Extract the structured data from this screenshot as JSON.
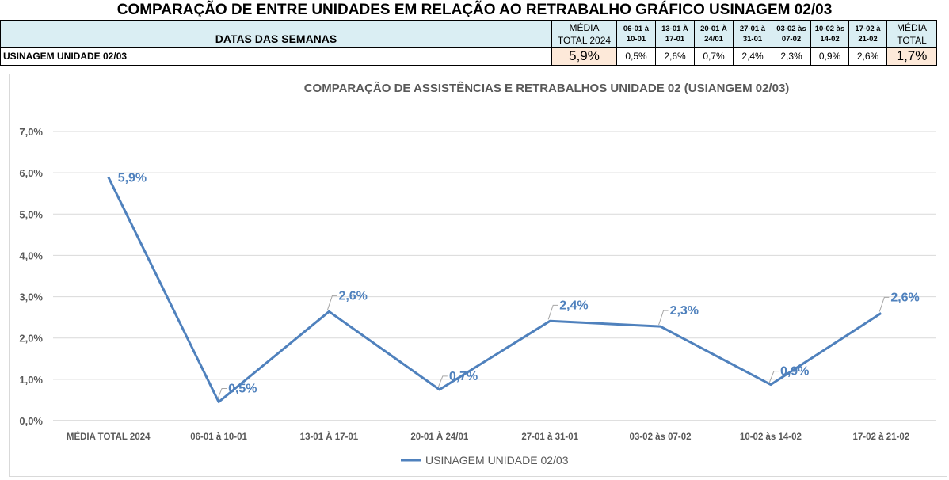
{
  "header": {
    "title": "COMPARAÇÃO DE ENTRE UNIDADES EM RELAÇÃO AO RETRABALHO GRÁFICO USINAGEM 02/03"
  },
  "table": {
    "label_header": "DATAS DAS SEMANAS",
    "columns": [
      {
        "line1": "MÉDIA",
        "line2": "TOTAL 2024"
      },
      {
        "line1": "06-01 à",
        "line2": "10-01"
      },
      {
        "line1": "13-01 À",
        "line2": "17-01"
      },
      {
        "line1": "20-01 À",
        "line2": "24/01"
      },
      {
        "line1": "27-01 à",
        "line2": "31-01"
      },
      {
        "line1": "03-02 às",
        "line2": "07-02"
      },
      {
        "line1": "10-02 às",
        "line2": "14-02"
      },
      {
        "line1": "17-02 à",
        "line2": "21-02"
      },
      {
        "line1": "MÉDIA",
        "line2": "TOTAL"
      }
    ],
    "row": {
      "label": "USINAGEM UNIDADE 02/03",
      "values": [
        "5,9%",
        "0,5%",
        "2,6%",
        "0,7%",
        "2,4%",
        "2,3%",
        "0,9%",
        "2,6%",
        "1,7%"
      ]
    },
    "colors": {
      "header_bg": "#daeef3",
      "highlight_bg": "#fde9d9"
    }
  },
  "chart_data": {
    "type": "line",
    "title": "COMPARAÇÃO DE ASSISTÊNCIAS E RETRABALHOS UNIDADE 02  (USIANGEM 02/03)",
    "categories": [
      "MÉDIA TOTAL 2024",
      "06-01 à 10-01",
      "13-01 À 17-01",
      "20-01 À 24/01",
      "27-01 à 31-01",
      "03-02 às 07-02",
      "10-02 às 14-02",
      "17-02 à 21-02"
    ],
    "series": [
      {
        "name": "USINAGEM UNIDADE 02/03",
        "values": [
          5.9,
          0.45,
          2.64,
          0.75,
          2.41,
          2.28,
          0.87,
          2.6
        ],
        "labels": [
          "5,9%",
          "0,5%",
          "2,6%",
          "0,7%",
          "2,4%",
          "2,3%",
          "0,9%",
          "2,6%"
        ],
        "color": "#4f81bd"
      }
    ],
    "y_ticks": [
      "0,0%",
      "1,0%",
      "2,0%",
      "3,0%",
      "4,0%",
      "5,0%",
      "6,0%",
      "7,0%"
    ],
    "ylim": [
      0,
      7
    ],
    "xlabel": "",
    "ylabel": "",
    "grid": true,
    "legend_position": "bottom"
  }
}
